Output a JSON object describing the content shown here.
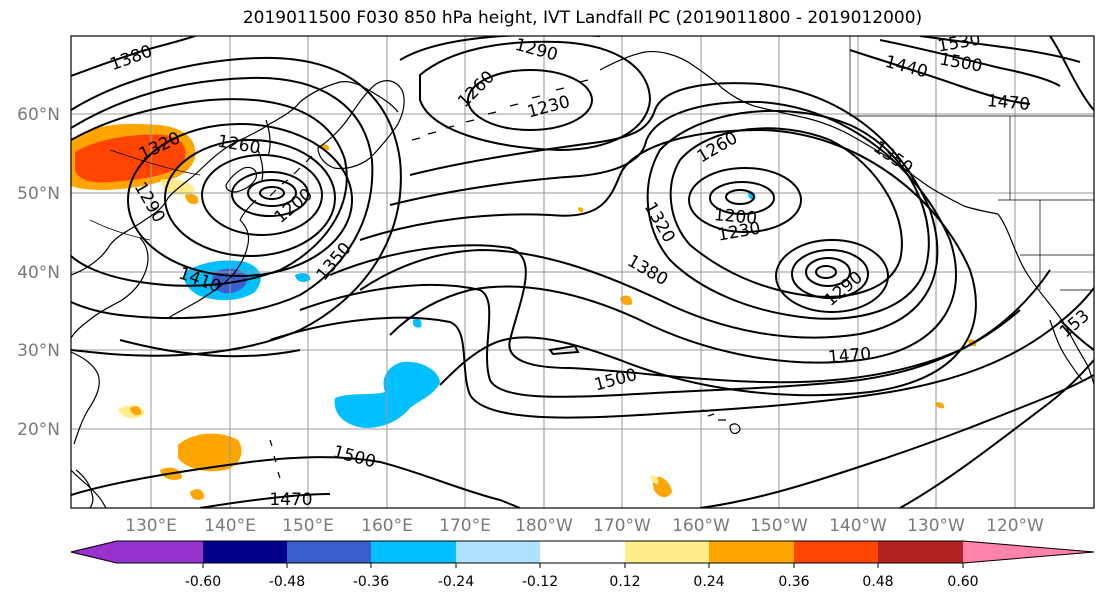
{
  "title": "2019011500 F030 850 hPa height, IVT Landfall PC (2019011800 - 2019012000)",
  "map": {
    "lat_labels": [
      "60°N",
      "50°N",
      "40°N",
      "30°N",
      "20°N"
    ],
    "lon_labels": [
      "130°E",
      "140°E",
      "150°E",
      "160°E",
      "170°E",
      "180°W",
      "170°W",
      "160°W",
      "150°W",
      "140°W",
      "130°W",
      "120°W"
    ],
    "contour_labels": [
      "1380",
      "1290",
      "1260",
      "1230",
      "1530",
      "1500",
      "1440",
      "1470",
      "1320",
      "1260",
      "1350",
      "1290",
      "1200",
      "1200",
      "1230",
      "1320",
      "1380",
      "1410",
      "1350",
      "1260",
      "1290",
      "1470",
      "1500",
      "1500",
      "1470",
      "153"
    ]
  },
  "colorbar": {
    "colors": [
      "#9932CC",
      "#00008B",
      "#3A5FCD",
      "#00BFFF",
      "#B0E2FF",
      "#FFFFFF",
      "#FFEC8B",
      "#FFA500",
      "#FF4500",
      "#B22222",
      "#FF82AB"
    ],
    "ticks": [
      "-0.60",
      "-0.48",
      "-0.36",
      "-0.24",
      "-0.12",
      "0.12",
      "0.24",
      "0.36",
      "0.48",
      "0.60"
    ]
  }
}
